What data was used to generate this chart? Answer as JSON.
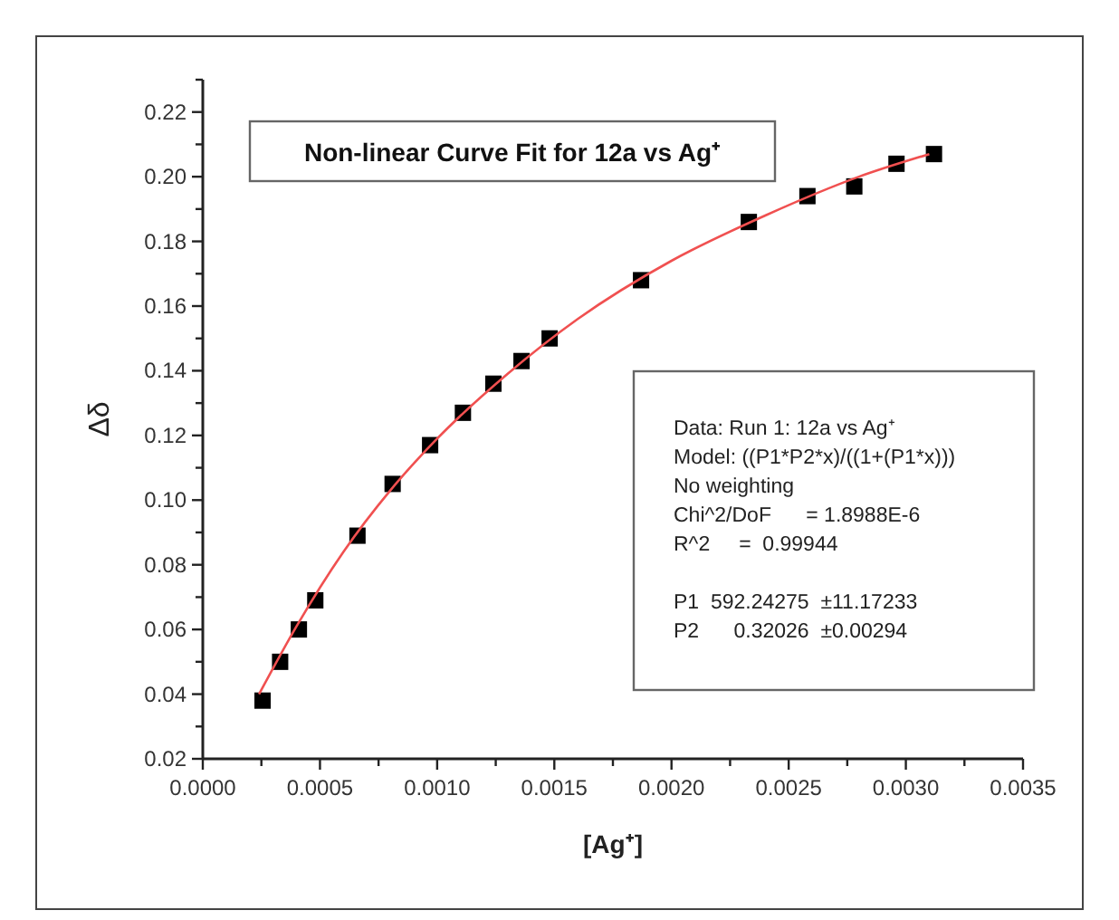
{
  "chart_data": {
    "type": "scatter",
    "title": "Non-linear Curve Fit for 12a vs Ag⁺",
    "xlabel": "[Ag⁺]",
    "ylabel": "Δδ",
    "xlim": [
      0,
      0.0035
    ],
    "ylim": [
      0.02,
      0.23
    ],
    "xticks": [
      {
        "value": 0,
        "label": "0.0000"
      },
      {
        "value": 0.00025,
        "label": null
      },
      {
        "value": 0.0005,
        "label": "0.0005"
      },
      {
        "value": 0.00075,
        "label": null
      },
      {
        "value": 0.001,
        "label": "0.0010"
      },
      {
        "value": 0.00125,
        "label": null
      },
      {
        "value": 0.0015,
        "label": "0.0015"
      },
      {
        "value": 0.00175,
        "label": null
      },
      {
        "value": 0.002,
        "label": "0.0020"
      },
      {
        "value": 0.00225,
        "label": null
      },
      {
        "value": 0.0025,
        "label": "0.0025"
      },
      {
        "value": 0.00275,
        "label": null
      },
      {
        "value": 0.003,
        "label": "0.0030"
      },
      {
        "value": 0.00325,
        "label": null
      },
      {
        "value": 0.0035,
        "label": "0.0035"
      }
    ],
    "yticks": [
      {
        "value": 0.02,
        "label": "0.02"
      },
      {
        "value": 0.03,
        "label": null
      },
      {
        "value": 0.04,
        "label": "0.04"
      },
      {
        "value": 0.05,
        "label": null
      },
      {
        "value": 0.06,
        "label": "0.06"
      },
      {
        "value": 0.07,
        "label": null
      },
      {
        "value": 0.08,
        "label": "0.08"
      },
      {
        "value": 0.09,
        "label": null
      },
      {
        "value": 0.1,
        "label": "0.10"
      },
      {
        "value": 0.11,
        "label": null
      },
      {
        "value": 0.12,
        "label": "0.12"
      },
      {
        "value": 0.13,
        "label": null
      },
      {
        "value": 0.14,
        "label": "0.14"
      },
      {
        "value": 0.15,
        "label": null
      },
      {
        "value": 0.16,
        "label": "0.16"
      },
      {
        "value": 0.17,
        "label": null
      },
      {
        "value": 0.18,
        "label": "0.18"
      },
      {
        "value": 0.19,
        "label": null
      },
      {
        "value": 0.2,
        "label": "0.20"
      },
      {
        "value": 0.21,
        "label": null
      },
      {
        "value": 0.22,
        "label": "0.22"
      },
      {
        "value": 0.23,
        "label": null
      }
    ],
    "series": [
      {
        "color": "#000000",
        "marker": "square",
        "x": [
          0.000255,
          0.00033,
          0.00041,
          0.00048,
          0.00066,
          0.00081,
          0.00097,
          0.00111,
          0.00124,
          0.00136,
          0.00148,
          0.00187,
          0.00233,
          0.00258,
          0.00278,
          0.00296,
          0.00312
        ],
        "values": [
          0.038,
          0.05,
          0.06,
          0.069,
          0.089,
          0.105,
          0.117,
          0.127,
          0.136,
          0.143,
          0.15,
          0.168,
          0.186,
          0.194,
          0.197,
          0.204,
          0.207
        ]
      },
      {
        "type": "line",
        "color": "#f05050",
        "marker": "none",
        "line_style": "solid",
        "x": [
          0.00024,
          0.0004,
          0.0006,
          0.0008,
          0.001,
          0.0013,
          0.0016,
          0.002,
          0.0024,
          0.0028,
          0.0031
        ],
        "values": [
          0.04,
          0.061,
          0.084,
          0.103,
          0.119,
          0.139,
          0.156,
          0.174,
          0.188,
          0.2,
          0.207
        ]
      }
    ],
    "annotations": [
      "Data: Run 1: 12a vs Ag⁺",
      "Model: ((P1*P2*x)/((1+(P1*x)))",
      "No weighting",
      "Chi^2/DoF      = 1.8988E-6",
      "R^2     =  0.99944",
      "P1  592.24275  ±11.17233",
      "P2      0.32026  ±0.00294"
    ]
  }
}
